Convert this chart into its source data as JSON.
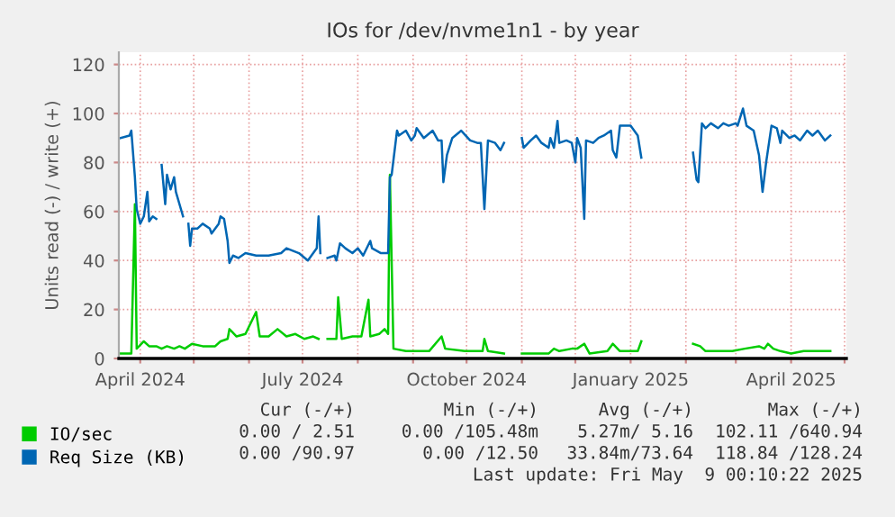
{
  "chart_data": {
    "type": "line",
    "title": "IOs for /dev/nvme1n1 - by year",
    "ylabel": "Units read (-) / write (+)",
    "xlim": [
      "2024-03-20",
      "2025-05-02"
    ],
    "ylim": [
      0,
      125
    ],
    "xticks": [
      {
        "value": "2024-04-01",
        "label": "April 2024"
      },
      {
        "value": "2024-05-01",
        "label": null
      },
      {
        "value": "2024-06-01",
        "label": null
      },
      {
        "value": "2024-07-01",
        "label": "July 2024"
      },
      {
        "value": "2024-08-01",
        "label": null
      },
      {
        "value": "2024-09-01",
        "label": null
      },
      {
        "value": "2024-10-01",
        "label": "October 2024"
      },
      {
        "value": "2024-11-01",
        "label": null
      },
      {
        "value": "2024-12-01",
        "label": null
      },
      {
        "value": "2025-01-01",
        "label": "January 2025"
      },
      {
        "value": "2025-02-01",
        "label": null
      },
      {
        "value": "2025-03-01",
        "label": null
      },
      {
        "value": "2025-04-01",
        "label": "April 2025"
      },
      {
        "value": "2025-05-01",
        "label": null
      }
    ],
    "yticks": [
      0,
      20,
      40,
      60,
      80,
      100,
      120
    ],
    "grid": true,
    "legend": "bottom",
    "series": [
      {
        "name": "IO/sec",
        "color": "#00cc00",
        "x": [
          "2024-03-21",
          "2024-03-27",
          "2024-03-29",
          "2024-03-30",
          "2024-04-03",
          "2024-04-06",
          "2024-04-10",
          "2024-04-13",
          "2024-04-16",
          "2024-04-20",
          "2024-04-23",
          "2024-04-26",
          "2024-04-30",
          "2024-05-06",
          "2024-05-13",
          "2024-05-16",
          "2024-05-20",
          "2024-05-21",
          "2024-05-25",
          "2024-05-30",
          "2024-06-05",
          "2024-06-07",
          "2024-06-12",
          "2024-06-17",
          "2024-06-22",
          "2024-06-27",
          "2024-07-02",
          "2024-07-07",
          "2024-07-10",
          "2024-07-13",
          "2024-07-15",
          "2024-07-20",
          "2024-07-21",
          "2024-07-23",
          "2024-07-29",
          "2024-08-03",
          "2024-08-07",
          "2024-08-08",
          "2024-08-13",
          "2024-08-16",
          "2024-08-18",
          "2024-08-19",
          "2024-08-21",
          "2024-08-28",
          "2024-09-10",
          "2024-09-17",
          "2024-09-19",
          "2024-09-30",
          "2024-10-10",
          "2024-10-11",
          "2024-10-13",
          "2024-10-22",
          "2024-10-27",
          "2024-11-01",
          "2024-11-16",
          "2024-11-19",
          "2024-11-22",
          "2024-11-29",
          "2024-12-02",
          "2024-12-04",
          "2024-12-06",
          "2024-12-09",
          "2024-12-19",
          "2024-12-22",
          "2024-12-26",
          "2025-01-05",
          "2025-01-07",
          "2025-01-20",
          "2025-02-05",
          "2025-02-09",
          "2025-02-12",
          "2025-02-27",
          "2025-03-06",
          "2025-03-14",
          "2025-03-17",
          "2025-03-19",
          "2025-03-22",
          "2025-03-26",
          "2025-04-01",
          "2025-04-08",
          "2025-04-15",
          "2025-04-23"
        ],
        "values": [
          2,
          2,
          63,
          4,
          7,
          5,
          5,
          4,
          5,
          4,
          5,
          4,
          6,
          5,
          5,
          7,
          8,
          12,
          9,
          10,
          19,
          9,
          9,
          12,
          9,
          10,
          8,
          9,
          8,
          null,
          8,
          8,
          25,
          8,
          9,
          9,
          24,
          9,
          10,
          12,
          10,
          75,
          4,
          3,
          3,
          9,
          4,
          3,
          3,
          8,
          3,
          2,
          null,
          2,
          2,
          4,
          3,
          4,
          4,
          5,
          6,
          2,
          3,
          6,
          3,
          3,
          7,
          null,
          6,
          5,
          3,
          3,
          4,
          5,
          4,
          6,
          4,
          3,
          2,
          3,
          3,
          3
        ]
      },
      {
        "name": "Req Size (KB)",
        "color": "#0066b3",
        "x": [
          "2024-03-21",
          "2024-03-26",
          "2024-03-27",
          "2024-03-29",
          "2024-03-30",
          "2024-04-01",
          "2024-04-03",
          "2024-04-05",
          "2024-04-06",
          "2024-04-08",
          "2024-04-10",
          "2024-04-12",
          "2024-04-13",
          "2024-04-15",
          "2024-04-16",
          "2024-04-18",
          "2024-04-20",
          "2024-04-21",
          "2024-04-25",
          "2024-04-26",
          "2024-04-28",
          "2024-04-29",
          "2024-04-30",
          "2024-05-03",
          "2024-05-06",
          "2024-05-10",
          "2024-05-11",
          "2024-05-15",
          "2024-05-16",
          "2024-05-18",
          "2024-05-20",
          "2024-05-21",
          "2024-05-23",
          "2024-05-26",
          "2024-05-30",
          "2024-06-05",
          "2024-06-12",
          "2024-06-19",
          "2024-06-22",
          "2024-06-29",
          "2024-07-04",
          "2024-07-07",
          "2024-07-09",
          "2024-07-10",
          "2024-07-11",
          "2024-07-13",
          "2024-07-15",
          "2024-07-19",
          "2024-07-20",
          "2024-07-22",
          "2024-07-25",
          "2024-07-29",
          "2024-08-01",
          "2024-08-04",
          "2024-08-08",
          "2024-08-09",
          "2024-08-14",
          "2024-08-18",
          "2024-08-19",
          "2024-08-20",
          "2024-08-23",
          "2024-08-24",
          "2024-08-28",
          "2024-08-31",
          "2024-09-02",
          "2024-09-03",
          "2024-09-07",
          "2024-09-12",
          "2024-09-15",
          "2024-09-17",
          "2024-09-18",
          "2024-09-20",
          "2024-09-23",
          "2024-09-28",
          "2024-10-03",
          "2024-10-07",
          "2024-10-09",
          "2024-10-11",
          "2024-10-13",
          "2024-10-17",
          "2024-10-20",
          "2024-10-22",
          "2024-10-27",
          "2024-11-01",
          "2024-11-02",
          "2024-11-06",
          "2024-11-09",
          "2024-11-12",
          "2024-11-16",
          "2024-11-17",
          "2024-11-19",
          "2024-11-21",
          "2024-11-22",
          "2024-11-26",
          "2024-11-29",
          "2024-12-01",
          "2024-12-02",
          "2024-12-04",
          "2024-12-06",
          "2024-12-07",
          "2024-12-11",
          "2024-12-14",
          "2024-12-17",
          "2024-12-21",
          "2024-12-22",
          "2024-12-24",
          "2024-12-26",
          "2024-12-29",
          "2025-01-01",
          "2025-01-05",
          "2025-01-07",
          "2025-01-20",
          "2025-02-05",
          "2025-02-07",
          "2025-02-08",
          "2025-02-10",
          "2025-02-12",
          "2025-02-15",
          "2025-02-19",
          "2025-02-22",
          "2025-02-25",
          "2025-03-01",
          "2025-03-02",
          "2025-03-05",
          "2025-03-07",
          "2025-03-11",
          "2025-03-14",
          "2025-03-16",
          "2025-03-18",
          "2025-03-21",
          "2025-03-24",
          "2025-03-26",
          "2025-03-27",
          "2025-03-31",
          "2025-04-03",
          "2025-04-06",
          "2025-04-10",
          "2025-04-13",
          "2025-04-16",
          "2025-04-20",
          "2025-04-23"
        ],
        "values": [
          90,
          91,
          93,
          74,
          61,
          55,
          58,
          68,
          56,
          58,
          57,
          null,
          79,
          63,
          75,
          69,
          74,
          68,
          58,
          null,
          55,
          46,
          53,
          53,
          55,
          53,
          51,
          55,
          58,
          57,
          48,
          39,
          42,
          41,
          43,
          42,
          42,
          43,
          45,
          43,
          40,
          43,
          45,
          58,
          43,
          null,
          41,
          42,
          40,
          47,
          45,
          43,
          45,
          42,
          48,
          45,
          43,
          43,
          74,
          75,
          93,
          91,
          93,
          89,
          91,
          94,
          90,
          93,
          89,
          89,
          72,
          83,
          90,
          93,
          89,
          88,
          88,
          61,
          89,
          88,
          85,
          88,
          null,
          90,
          86,
          89,
          91,
          88,
          86,
          90,
          86,
          97,
          88,
          89,
          88,
          80,
          90,
          86,
          57,
          89,
          88,
          90,
          91,
          93,
          85,
          82,
          95,
          95,
          95,
          91,
          82,
          null,
          84,
          73,
          72,
          96,
          94,
          96,
          94,
          96,
          95,
          96,
          95,
          102,
          95,
          93,
          83,
          68,
          80,
          95,
          94,
          88,
          93,
          90,
          91,
          89,
          93,
          91,
          93,
          89,
          91
        ]
      }
    ],
    "annotations": [
      "Cur (-/+)",
      "Min (-/+)",
      "Avg (-/+)",
      "Max (-/+)",
      "0.00 / 2.51",
      "0.00 /105.48m",
      "5.27m/ 5.16",
      "102.11 /640.94",
      "0.00 /90.97",
      "0.00 /12.50",
      "33.84m/73.64",
      "118.84 /128.24",
      "Last update: Fri May  9 00:10:22 2025"
    ]
  }
}
